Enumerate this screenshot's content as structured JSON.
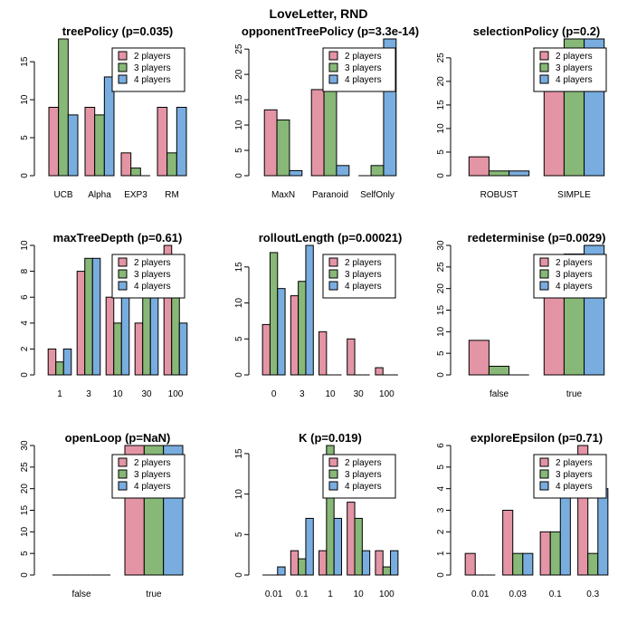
{
  "suptitle": "LoveLetter, RND",
  "colors": {
    "p2": "#e395a5",
    "p3": "#87b877",
    "p4": "#79addf"
  },
  "legend": [
    "2 players",
    "3 players",
    "4 players"
  ],
  "chart_data": [
    {
      "type": "bar",
      "title": "treePolicy (p=0.035)",
      "categories": [
        "UCB",
        "Alpha",
        "EXP3",
        "RM"
      ],
      "series": [
        {
          "name": "2 players",
          "values": [
            9,
            9,
            3,
            9
          ]
        },
        {
          "name": "3 players",
          "values": [
            18,
            8,
            1,
            3
          ]
        },
        {
          "name": "4 players",
          "values": [
            8,
            13,
            0,
            9
          ]
        }
      ],
      "ylim": [
        0,
        18
      ],
      "yticks": [
        0,
        5,
        10,
        15
      ],
      "legend_position": "top-right"
    },
    {
      "type": "bar",
      "title": "opponentTreePolicy (p=3.3e-14)",
      "categories": [
        "MaxN",
        "Paranoid",
        "SelfOnly"
      ],
      "series": [
        {
          "name": "2 players",
          "values": [
            13,
            17,
            0
          ]
        },
        {
          "name": "3 players",
          "values": [
            11,
            18,
            2
          ]
        },
        {
          "name": "4 players",
          "values": [
            1,
            2,
            27
          ]
        }
      ],
      "ylim": [
        0,
        27
      ],
      "yticks": [
        0,
        5,
        10,
        15,
        20,
        25
      ],
      "legend_position": "top-right"
    },
    {
      "type": "bar",
      "title": "selectionPolicy (p=0.2)",
      "categories": [
        "ROBUST",
        "SIMPLE"
      ],
      "series": [
        {
          "name": "2 players",
          "values": [
            4,
            26
          ]
        },
        {
          "name": "3 players",
          "values": [
            1,
            29
          ]
        },
        {
          "name": "4 players",
          "values": [
            1,
            29
          ]
        }
      ],
      "ylim": [
        0,
        29
      ],
      "yticks": [
        0,
        5,
        10,
        15,
        20,
        25
      ],
      "legend_position": "top-right"
    },
    {
      "type": "bar",
      "title": "maxTreeDepth (p=0.61)",
      "categories": [
        "1",
        "3",
        "10",
        "30",
        "100"
      ],
      "series": [
        {
          "name": "2 players",
          "values": [
            2,
            8,
            6,
            4,
            10
          ]
        },
        {
          "name": "3 players",
          "values": [
            1,
            9,
            4,
            6,
            8
          ]
        },
        {
          "name": "4 players",
          "values": [
            2,
            9,
            7,
            8,
            4
          ]
        }
      ],
      "ylim": [
        0,
        10
      ],
      "yticks": [
        0,
        2,
        4,
        6,
        8,
        10
      ],
      "legend_position": "top-right"
    },
    {
      "type": "bar",
      "title": "rolloutLength (p=0.00021)",
      "categories": [
        "0",
        "3",
        "10",
        "30",
        "100"
      ],
      "series": [
        {
          "name": "2 players",
          "values": [
            7,
            11,
            6,
            5,
            1
          ]
        },
        {
          "name": "3 players",
          "values": [
            17,
            13,
            0,
            0,
            0
          ]
        },
        {
          "name": "4 players",
          "values": [
            12,
            18,
            0,
            0,
            0
          ]
        }
      ],
      "ylim": [
        0,
        18
      ],
      "yticks": [
        0,
        5,
        10,
        15
      ],
      "legend_position": "top-right"
    },
    {
      "type": "bar",
      "title": "redeterminise (p=0.0029)",
      "categories": [
        "false",
        "true"
      ],
      "series": [
        {
          "name": "2 players",
          "values": [
            8,
            22
          ]
        },
        {
          "name": "3 players",
          "values": [
            2,
            28
          ]
        },
        {
          "name": "4 players",
          "values": [
            0,
            30
          ]
        }
      ],
      "ylim": [
        0,
        30
      ],
      "yticks": [
        0,
        5,
        10,
        15,
        20,
        25,
        30
      ],
      "legend_position": "top-right"
    },
    {
      "type": "bar",
      "title": "openLoop (p=NaN)",
      "categories": [
        "false",
        "true"
      ],
      "series": [
        {
          "name": "2 players",
          "values": [
            0,
            30
          ]
        },
        {
          "name": "3 players",
          "values": [
            0,
            30
          ]
        },
        {
          "name": "4 players",
          "values": [
            0,
            30
          ]
        }
      ],
      "ylim": [
        0,
        30
      ],
      "yticks": [
        0,
        5,
        10,
        15,
        20,
        25,
        30
      ],
      "legend_position": "top-right"
    },
    {
      "type": "bar",
      "title": "K (p=0.019)",
      "categories": [
        "0.01",
        "0.1",
        "1",
        "10",
        "100"
      ],
      "series": [
        {
          "name": "2 players",
          "values": [
            0,
            3,
            3,
            9,
            3
          ]
        },
        {
          "name": "3 players",
          "values": [
            0,
            2,
            16,
            7,
            1
          ]
        },
        {
          "name": "4 players",
          "values": [
            1,
            7,
            7,
            3,
            3
          ]
        }
      ],
      "ylim": [
        0,
        16
      ],
      "yticks": [
        0,
        5,
        10,
        15
      ],
      "legend_position": "top-right"
    },
    {
      "type": "bar",
      "title": "exploreEpsilon (p=0.71)",
      "categories": [
        "0.01",
        "0.03",
        "0.1",
        "0.3"
      ],
      "series": [
        {
          "name": "2 players",
          "values": [
            1,
            3,
            2,
            6
          ]
        },
        {
          "name": "3 players",
          "values": [
            0,
            1,
            2,
            1
          ]
        },
        {
          "name": "4 players",
          "values": [
            0,
            1,
            5,
            4
          ]
        }
      ],
      "ylim": [
        0,
        6
      ],
      "yticks": [
        0,
        1,
        2,
        3,
        4,
        5,
        6
      ],
      "legend_position": "top-right"
    }
  ]
}
